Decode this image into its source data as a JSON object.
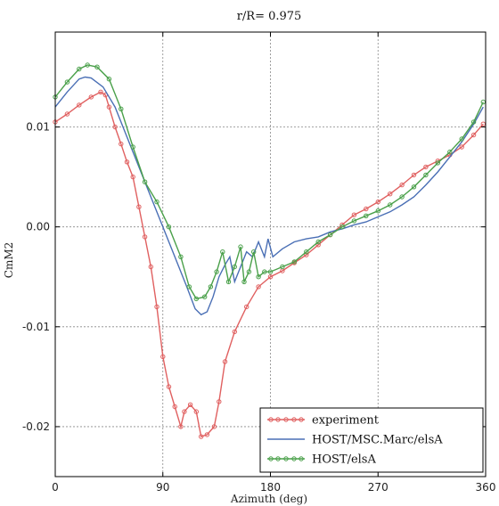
{
  "chart_data": {
    "type": "line",
    "title": "r/R= 0.975",
    "xlabel": "Azimuth (deg)",
    "ylabel": "CmM2",
    "xlim": [
      0,
      360
    ],
    "ylim": [
      -0.025,
      0.0195
    ],
    "xticks": [
      0,
      90,
      180,
      270,
      360
    ],
    "xtick_labels": [
      "0",
      "90",
      "180",
      "270",
      "360"
    ],
    "yticks": [
      -0.02,
      -0.01,
      0.0,
      0.01
    ],
    "ytick_labels": [
      "-0.02",
      "-0.01",
      "0.00",
      "0.01"
    ],
    "grid": true,
    "legend_position": "lower-right",
    "series": [
      {
        "name": "experiment",
        "color": "#e06060",
        "marker": "circle",
        "points": [
          [
            0,
            0.0105
          ],
          [
            10,
            0.0113
          ],
          [
            20,
            0.0122
          ],
          [
            30,
            0.013
          ],
          [
            38,
            0.0135
          ],
          [
            42,
            0.0132
          ],
          [
            45,
            0.012
          ],
          [
            50,
            0.01
          ],
          [
            55,
            0.0083
          ],
          [
            60,
            0.0065
          ],
          [
            65,
            0.005
          ],
          [
            70,
            0.002
          ],
          [
            75,
            -0.001
          ],
          [
            80,
            -0.004
          ],
          [
            85,
            -0.008
          ],
          [
            90,
            -0.013
          ],
          [
            95,
            -0.016
          ],
          [
            100,
            -0.018
          ],
          [
            105,
            -0.02
          ],
          [
            108,
            -0.0185
          ],
          [
            113,
            -0.0178
          ],
          [
            118,
            -0.0185
          ],
          [
            122,
            -0.021
          ],
          [
            127,
            -0.0208
          ],
          [
            133,
            -0.02
          ],
          [
            137,
            -0.0175
          ],
          [
            142,
            -0.0135
          ],
          [
            150,
            -0.0105
          ],
          [
            160,
            -0.008
          ],
          [
            170,
            -0.006
          ],
          [
            180,
            -0.005
          ],
          [
            190,
            -0.0044
          ],
          [
            200,
            -0.0036
          ],
          [
            210,
            -0.0028
          ],
          [
            220,
            -0.0018
          ],
          [
            230,
            -0.0008
          ],
          [
            240,
            0.0002
          ],
          [
            250,
            0.0012
          ],
          [
            260,
            0.0018
          ],
          [
            270,
            0.0025
          ],
          [
            280,
            0.0033
          ],
          [
            290,
            0.0042
          ],
          [
            300,
            0.0052
          ],
          [
            310,
            0.006
          ],
          [
            320,
            0.0066
          ],
          [
            330,
            0.0072
          ],
          [
            340,
            0.008
          ],
          [
            350,
            0.0092
          ],
          [
            358,
            0.0103
          ]
        ]
      },
      {
        "name": "HOST/MSC.Marc/elsA",
        "color": "#4a6fb5",
        "marker": "none",
        "points": [
          [
            0,
            0.012
          ],
          [
            10,
            0.0135
          ],
          [
            20,
            0.0148
          ],
          [
            25,
            0.015
          ],
          [
            30,
            0.0149
          ],
          [
            40,
            0.014
          ],
          [
            50,
            0.012
          ],
          [
            60,
            0.009
          ],
          [
            70,
            0.006
          ],
          [
            80,
            0.003
          ],
          [
            90,
            0.0
          ],
          [
            100,
            -0.003
          ],
          [
            110,
            -0.006
          ],
          [
            117,
            -0.0082
          ],
          [
            122,
            -0.0088
          ],
          [
            127,
            -0.0085
          ],
          [
            132,
            -0.007
          ],
          [
            137,
            -0.005
          ],
          [
            142,
            -0.0038
          ],
          [
            146,
            -0.003
          ],
          [
            150,
            -0.0055
          ],
          [
            155,
            -0.004
          ],
          [
            160,
            -0.0025
          ],
          [
            165,
            -0.003
          ],
          [
            170,
            -0.0015
          ],
          [
            175,
            -0.003
          ],
          [
            178,
            -0.0012
          ],
          [
            182,
            -0.003
          ],
          [
            190,
            -0.0022
          ],
          [
            200,
            -0.0015
          ],
          [
            210,
            -0.0012
          ],
          [
            220,
            -0.001
          ],
          [
            230,
            -0.0005
          ],
          [
            240,
            -0.0002
          ],
          [
            250,
            0.0002
          ],
          [
            260,
            0.0005
          ],
          [
            270,
            0.001
          ],
          [
            280,
            0.0015
          ],
          [
            290,
            0.0022
          ],
          [
            300,
            0.003
          ],
          [
            310,
            0.0042
          ],
          [
            320,
            0.0055
          ],
          [
            330,
            0.007
          ],
          [
            340,
            0.0085
          ],
          [
            350,
            0.0103
          ],
          [
            358,
            0.012
          ]
        ]
      },
      {
        "name": "HOST/elsA",
        "color": "#4aa04a",
        "marker": "circle",
        "points": [
          [
            0,
            0.013
          ],
          [
            10,
            0.0145
          ],
          [
            20,
            0.0158
          ],
          [
            27,
            0.0162
          ],
          [
            35,
            0.016
          ],
          [
            45,
            0.0148
          ],
          [
            55,
            0.0118
          ],
          [
            65,
            0.008
          ],
          [
            75,
            0.0045
          ],
          [
            85,
            0.0025
          ],
          [
            95,
            0.0
          ],
          [
            105,
            -0.003
          ],
          [
            112,
            -0.006
          ],
          [
            118,
            -0.0072
          ],
          [
            125,
            -0.007
          ],
          [
            130,
            -0.006
          ],
          [
            135,
            -0.0045
          ],
          [
            140,
            -0.0025
          ],
          [
            145,
            -0.0055
          ],
          [
            150,
            -0.004
          ],
          [
            155,
            -0.002
          ],
          [
            158,
            -0.0055
          ],
          [
            162,
            -0.0045
          ],
          [
            166,
            -0.0025
          ],
          [
            170,
            -0.005
          ],
          [
            175,
            -0.0045
          ],
          [
            180,
            -0.0045
          ],
          [
            190,
            -0.004
          ],
          [
            200,
            -0.0035
          ],
          [
            210,
            -0.0025
          ],
          [
            220,
            -0.0015
          ],
          [
            230,
            -0.0008
          ],
          [
            240,
            0.0
          ],
          [
            250,
            0.0006
          ],
          [
            260,
            0.0011
          ],
          [
            270,
            0.0016
          ],
          [
            280,
            0.0022
          ],
          [
            290,
            0.003
          ],
          [
            300,
            0.004
          ],
          [
            310,
            0.0052
          ],
          [
            320,
            0.0064
          ],
          [
            330,
            0.0075
          ],
          [
            340,
            0.0088
          ],
          [
            350,
            0.0105
          ],
          [
            358,
            0.0125
          ]
        ]
      }
    ]
  }
}
